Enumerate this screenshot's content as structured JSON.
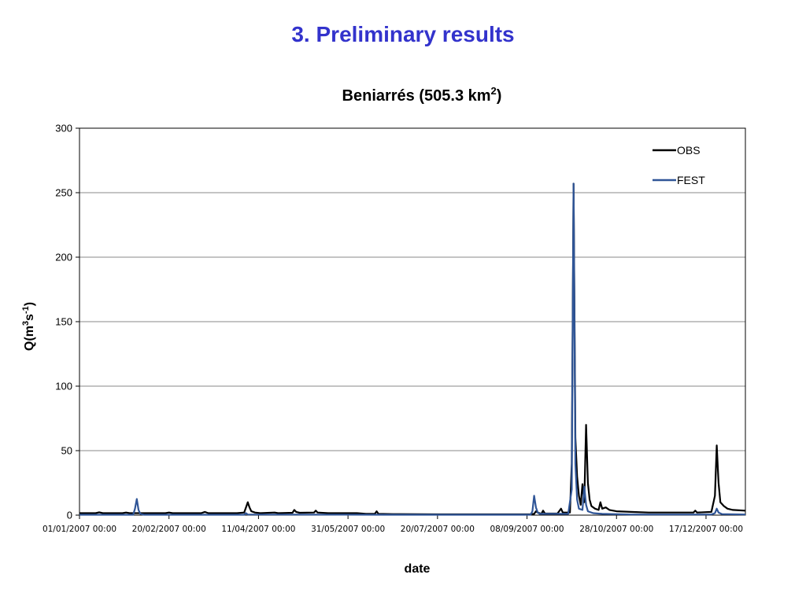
{
  "slide": {
    "title": "3. Preliminary results"
  },
  "chart_data": {
    "type": "line",
    "title": "Beniarrés (505.3 km",
    "title_sup": "2",
    "title_end": ")",
    "xlabel": "date",
    "ylabel": {
      "p1": "Q(m",
      "sup1": "3",
      "p2": "s",
      "sup2": "-1",
      "p3": ")"
    },
    "ylim": [
      0,
      300
    ],
    "yticks": [
      0,
      50,
      100,
      150,
      200,
      250,
      300
    ],
    "xlim": [
      "2007-01-01",
      "2008-01-08"
    ],
    "xticks": [
      "01/01/2007 00:00",
      "20/02/2007 00:00",
      "11/04/2007 00:00",
      "31/05/2007 00:00",
      "20/07/2007 00:00",
      "08/09/2007 00:00",
      "28/10/2007 00:00",
      "17/12/2007 00:00"
    ],
    "grid": true,
    "legend_position": "top-right",
    "series": [
      {
        "name": "OBS",
        "color": "#000000",
        "points": [
          [
            "2007-01-01",
            1.5
          ],
          [
            "2007-01-10",
            1.5
          ],
          [
            "2007-01-12",
            2.2
          ],
          [
            "2007-01-14",
            1.5
          ],
          [
            "2007-01-25",
            1.5
          ],
          [
            "2007-01-27",
            2.0
          ],
          [
            "2007-01-29",
            1.5
          ],
          [
            "2007-02-10",
            1.5
          ],
          [
            "2007-02-18",
            1.5
          ],
          [
            "2007-02-20",
            2.0
          ],
          [
            "2007-02-22",
            1.5
          ],
          [
            "2007-03-10",
            1.5
          ],
          [
            "2007-03-12",
            2.5
          ],
          [
            "2007-03-14",
            1.5
          ],
          [
            "2007-03-30",
            1.5
          ],
          [
            "2007-04-03",
            2.0
          ],
          [
            "2007-04-04",
            6.0
          ],
          [
            "2007-04-05",
            10.0
          ],
          [
            "2007-04-06",
            6.0
          ],
          [
            "2007-04-07",
            3.0
          ],
          [
            "2007-04-09",
            2.0
          ],
          [
            "2007-04-12",
            1.5
          ],
          [
            "2007-04-20",
            2.0
          ],
          [
            "2007-04-22",
            1.5
          ],
          [
            "2007-04-30",
            1.8
          ],
          [
            "2007-05-01",
            4.0
          ],
          [
            "2007-05-02",
            2.5
          ],
          [
            "2007-05-04",
            1.8
          ],
          [
            "2007-05-12",
            2.0
          ],
          [
            "2007-05-13",
            3.5
          ],
          [
            "2007-05-14",
            2.0
          ],
          [
            "2007-05-20",
            1.5
          ],
          [
            "2007-06-05",
            1.5
          ],
          [
            "2007-06-10",
            1.0
          ],
          [
            "2007-06-15",
            1.0
          ],
          [
            "2007-06-16",
            3.0
          ],
          [
            "2007-06-17",
            1.0
          ],
          [
            "2007-06-25",
            0.8
          ],
          [
            "2007-07-20",
            0.6
          ],
          [
            "2007-08-20",
            0.6
          ],
          [
            "2007-09-10",
            0.6
          ],
          [
            "2007-09-12",
            1.0
          ],
          [
            "2007-09-13",
            3.0
          ],
          [
            "2007-09-14",
            2.0
          ],
          [
            "2007-09-16",
            1.0
          ],
          [
            "2007-09-17",
            3.5
          ],
          [
            "2007-09-18",
            1.2
          ],
          [
            "2007-09-25",
            1.2
          ],
          [
            "2007-09-27",
            5.0
          ],
          [
            "2007-09-28",
            2.0
          ],
          [
            "2007-10-02",
            2.0
          ],
          [
            "2007-10-03",
            40.0
          ],
          [
            "2007-10-04",
            257.0
          ],
          [
            "2007-10-05",
            60.0
          ],
          [
            "2007-10-06",
            30.0
          ],
          [
            "2007-10-07",
            15.0
          ],
          [
            "2007-10-08",
            8.0
          ],
          [
            "2007-10-09",
            24.0
          ],
          [
            "2007-10-10",
            10.0
          ],
          [
            "2007-10-11",
            70.0
          ],
          [
            "2007-10-12",
            25.0
          ],
          [
            "2007-10-13",
            12.0
          ],
          [
            "2007-10-14",
            7.0
          ],
          [
            "2007-10-16",
            5.0
          ],
          [
            "2007-10-18",
            4.0
          ],
          [
            "2007-10-19",
            10.0
          ],
          [
            "2007-10-20",
            5.0
          ],
          [
            "2007-10-22",
            6.0
          ],
          [
            "2007-10-24",
            4.0
          ],
          [
            "2007-10-28",
            3.0
          ],
          [
            "2007-11-05",
            2.5
          ],
          [
            "2007-11-15",
            2.0
          ],
          [
            "2007-11-25",
            2.0
          ],
          [
            "2007-11-30",
            2.0
          ],
          [
            "2007-12-10",
            2.0
          ],
          [
            "2007-12-11",
            3.5
          ],
          [
            "2007-12-12",
            2.0
          ],
          [
            "2007-12-20",
            2.5
          ],
          [
            "2007-12-22",
            15.0
          ],
          [
            "2007-12-23",
            54.0
          ],
          [
            "2007-12-24",
            25.0
          ],
          [
            "2007-12-25",
            10.0
          ],
          [
            "2007-12-27",
            7.0
          ],
          [
            "2007-12-29",
            5.0
          ],
          [
            "2008-01-01",
            4.0
          ],
          [
            "2008-01-08",
            3.5
          ]
        ]
      },
      {
        "name": "FEST",
        "color": "#2f5597",
        "points": [
          [
            "2007-01-01",
            0.3
          ],
          [
            "2007-01-31",
            0.3
          ],
          [
            "2007-02-01",
            5.0
          ],
          [
            "2007-02-02",
            12.5
          ],
          [
            "2007-02-03",
            4.0
          ],
          [
            "2007-02-04",
            1.0
          ],
          [
            "2007-02-06",
            0.3
          ],
          [
            "2007-04-03",
            0.3
          ],
          [
            "2007-04-04",
            1.5
          ],
          [
            "2007-04-05",
            0.5
          ],
          [
            "2007-06-20",
            0.3
          ],
          [
            "2007-09-10",
            0.3
          ],
          [
            "2007-09-11",
            3.0
          ],
          [
            "2007-09-12",
            15.0
          ],
          [
            "2007-09-13",
            6.0
          ],
          [
            "2007-09-14",
            2.0
          ],
          [
            "2007-09-15",
            1.0
          ],
          [
            "2007-09-17",
            1.0
          ],
          [
            "2007-10-01",
            1.0
          ],
          [
            "2007-10-03",
            20.0
          ],
          [
            "2007-10-04",
            257.0
          ],
          [
            "2007-10-05",
            40.0
          ],
          [
            "2007-10-06",
            12.0
          ],
          [
            "2007-10-07",
            5.0
          ],
          [
            "2007-10-09",
            4.0
          ],
          [
            "2007-10-10",
            22.0
          ],
          [
            "2007-10-11",
            8.0
          ],
          [
            "2007-10-12",
            3.0
          ],
          [
            "2007-10-15",
            1.5
          ],
          [
            "2007-10-20",
            1.0
          ],
          [
            "2007-11-05",
            0.5
          ],
          [
            "2007-12-20",
            0.5
          ],
          [
            "2007-12-22",
            1.5
          ],
          [
            "2007-12-23",
            5.0
          ],
          [
            "2007-12-24",
            2.0
          ],
          [
            "2007-12-26",
            0.8
          ],
          [
            "2008-01-08",
            0.5
          ]
        ]
      }
    ]
  }
}
